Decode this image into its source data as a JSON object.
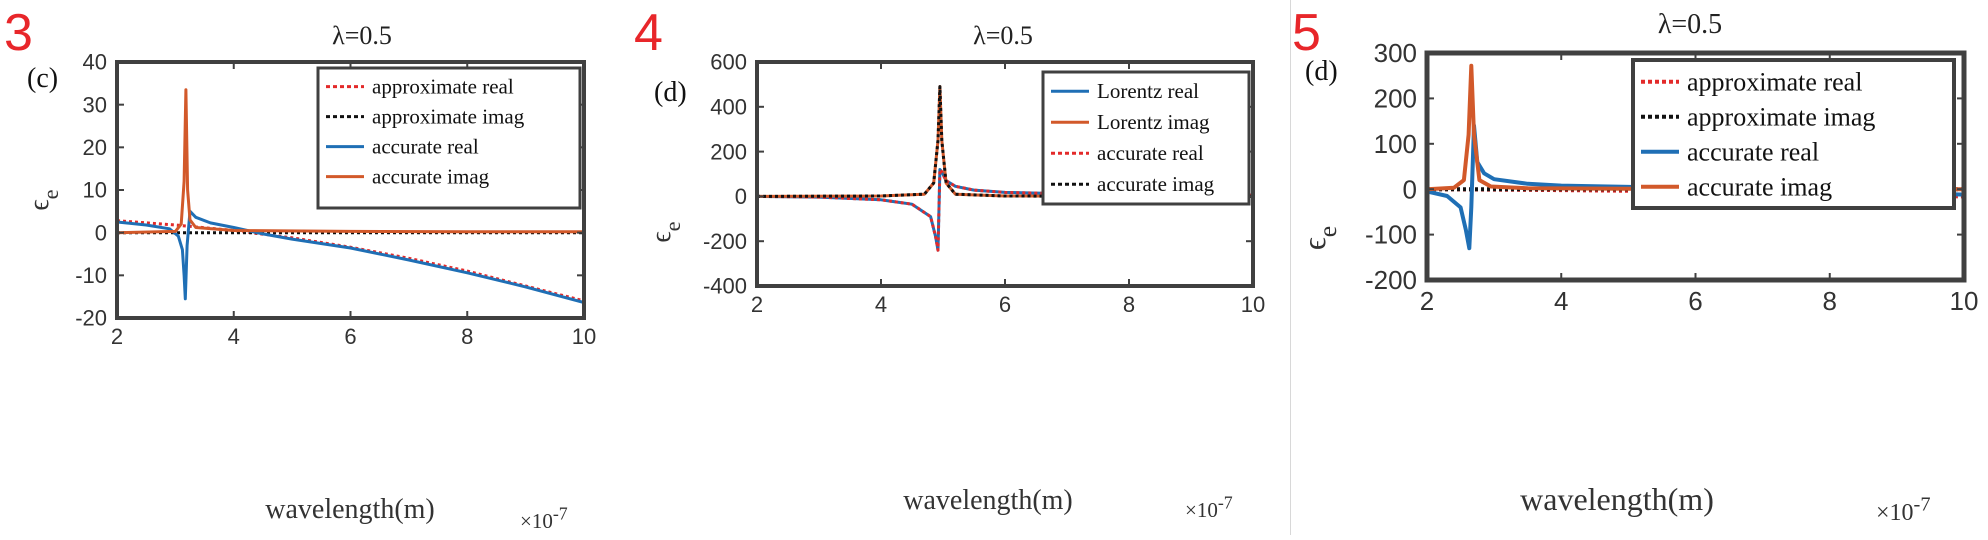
{
  "colors": {
    "blue": "#1f6fb5",
    "orange": "#d2592a",
    "red_dotted": "#e32a2a",
    "black_dotted": "#111111",
    "frame": "#404040",
    "panel_number": "#e8262a"
  },
  "chart_data": [
    {
      "type": "line",
      "panel_number": "3",
      "panel_letter": "(c)",
      "title": "λ=0.5",
      "xlabel": "wavelength(m)",
      "x_exponent": "×10-7",
      "ylabel": "ϵe",
      "xlim": [
        2,
        10
      ],
      "ylim": [
        -20,
        40
      ],
      "xticks": [
        2,
        4,
        6,
        8,
        10
      ],
      "yticks": [
        -20,
        -10,
        0,
        10,
        20,
        30,
        40
      ],
      "legend_position": "top-right",
      "series": [
        {
          "name": "approximate real",
          "style": "dotted",
          "color": "#e32a2a",
          "x": [
            2,
            3,
            4,
            5,
            6,
            7,
            8,
            9,
            10
          ],
          "y": [
            2.8,
            1.8,
            0.5,
            -1.2,
            -3.4,
            -6,
            -9,
            -12.5,
            -16
          ]
        },
        {
          "name": "approximate imag",
          "style": "dotted",
          "color": "#111111",
          "x": [
            2,
            4,
            6,
            8,
            10
          ],
          "y": [
            0,
            0,
            0,
            0,
            0
          ]
        },
        {
          "name": "accurate real",
          "style": "solid",
          "color": "#1f6fb5",
          "x": [
            2,
            2.5,
            2.9,
            3.05,
            3.12,
            3.15,
            3.17,
            3.2,
            3.25,
            3.35,
            3.6,
            4,
            4.5,
            5,
            6,
            7,
            8,
            9,
            10
          ],
          "y": [
            2.5,
            1.8,
            0.9,
            -0.8,
            -4,
            -10,
            -15.5,
            -3,
            5,
            3.6,
            2.3,
            1.2,
            -0.3,
            -1.5,
            -3.6,
            -6.4,
            -9.4,
            -12.7,
            -16.4
          ]
        },
        {
          "name": "accurate imag",
          "style": "solid",
          "color": "#d2592a",
          "x": [
            2,
            3,
            3.1,
            3.15,
            3.18,
            3.21,
            3.25,
            3.35,
            4,
            6,
            8,
            10
          ],
          "y": [
            0,
            0.3,
            2,
            12,
            33.5,
            10,
            3,
            1.2,
            0.5,
            0.3,
            0.2,
            0.2
          ]
        }
      ]
    },
    {
      "type": "line",
      "panel_number": "4",
      "panel_letter": "(d)",
      "title": "λ=0.5",
      "xlabel": "wavelength(m)",
      "x_exponent": "×10-7",
      "ylabel": "ϵe",
      "xlim": [
        2,
        10
      ],
      "ylim": [
        -400,
        600
      ],
      "xticks": [
        2,
        4,
        6,
        8,
        10
      ],
      "yticks": [
        -400,
        -200,
        0,
        200,
        400,
        600
      ],
      "legend_position": "top-right",
      "series": [
        {
          "name": "Lorentz real",
          "style": "solid",
          "color": "#1f6fb5",
          "x": [
            2,
            3,
            4,
            4.5,
            4.8,
            4.88,
            4.92,
            4.95,
            4.98,
            5.05,
            5.2,
            5.5,
            6,
            7,
            8,
            10
          ],
          "y": [
            0,
            -3,
            -15,
            -35,
            -90,
            -180,
            -240,
            120,
            110,
            70,
            45,
            28,
            18,
            12,
            9,
            6
          ]
        },
        {
          "name": "Lorentz imag",
          "style": "solid",
          "color": "#d2592a",
          "x": [
            2,
            4,
            4.7,
            4.85,
            4.92,
            4.95,
            4.98,
            5.05,
            5.2,
            6,
            8,
            10
          ],
          "y": [
            0,
            2,
            10,
            60,
            250,
            490,
            250,
            60,
            10,
            2,
            0.5,
            0
          ]
        },
        {
          "name": "accurate real",
          "style": "dotted",
          "color": "#e32a2a",
          "x": [
            2,
            3,
            4,
            4.5,
            4.8,
            4.88,
            4.92,
            4.95,
            4.98,
            5.05,
            5.2,
            5.5,
            6,
            7,
            8,
            10
          ],
          "y": [
            0,
            -3,
            -15,
            -35,
            -90,
            -180,
            -240,
            120,
            110,
            70,
            45,
            28,
            18,
            12,
            9,
            6
          ]
        },
        {
          "name": "accurate imag",
          "style": "dotted",
          "color": "#111111",
          "x": [
            2,
            4,
            4.7,
            4.85,
            4.92,
            4.95,
            4.98,
            5.05,
            5.2,
            6,
            8,
            10
          ],
          "y": [
            0,
            2,
            10,
            60,
            250,
            490,
            250,
            60,
            10,
            2,
            0.5,
            0
          ]
        }
      ]
    },
    {
      "type": "line",
      "panel_number": "5",
      "panel_letter": "(d)",
      "title": "λ=0.5",
      "xlabel": "wavelength(m)",
      "x_exponent": "×10-7",
      "ylabel": "ϵe",
      "xlim": [
        2,
        10
      ],
      "ylim": [
        -200,
        300
      ],
      "xticks": [
        2,
        4,
        6,
        8,
        10
      ],
      "yticks": [
        -200,
        -100,
        0,
        100,
        200,
        300
      ],
      "legend_position": "top-right",
      "series": [
        {
          "name": "approximate real",
          "style": "dotted",
          "color": "#e32a2a",
          "x": [
            2,
            4,
            6,
            8,
            10
          ],
          "y": [
            0,
            -2,
            -5,
            -9,
            -16
          ]
        },
        {
          "name": "approximate imag",
          "style": "dotted",
          "color": "#111111",
          "x": [
            2,
            4,
            6,
            8,
            10
          ],
          "y": [
            0,
            0,
            0,
            0,
            0
          ]
        },
        {
          "name": "accurate real",
          "style": "solid",
          "color": "#1f6fb5",
          "x": [
            2,
            2.3,
            2.5,
            2.58,
            2.63,
            2.66,
            2.7,
            2.75,
            2.85,
            3,
            3.5,
            4,
            5,
            6,
            7,
            8,
            9,
            10
          ],
          "y": [
            -5,
            -15,
            -40,
            -90,
            -130,
            -40,
            140,
            60,
            35,
            22,
            12,
            8,
            5,
            2,
            0,
            -3,
            -7,
            -12
          ]
        },
        {
          "name": "accurate imag",
          "style": "solid",
          "color": "#d2592a",
          "x": [
            2,
            2.4,
            2.55,
            2.62,
            2.66,
            2.7,
            2.78,
            2.95,
            3.5,
            5,
            10
          ],
          "y": [
            0,
            3,
            20,
            120,
            272,
            120,
            20,
            6,
            2,
            1,
            0
          ]
        }
      ]
    }
  ]
}
